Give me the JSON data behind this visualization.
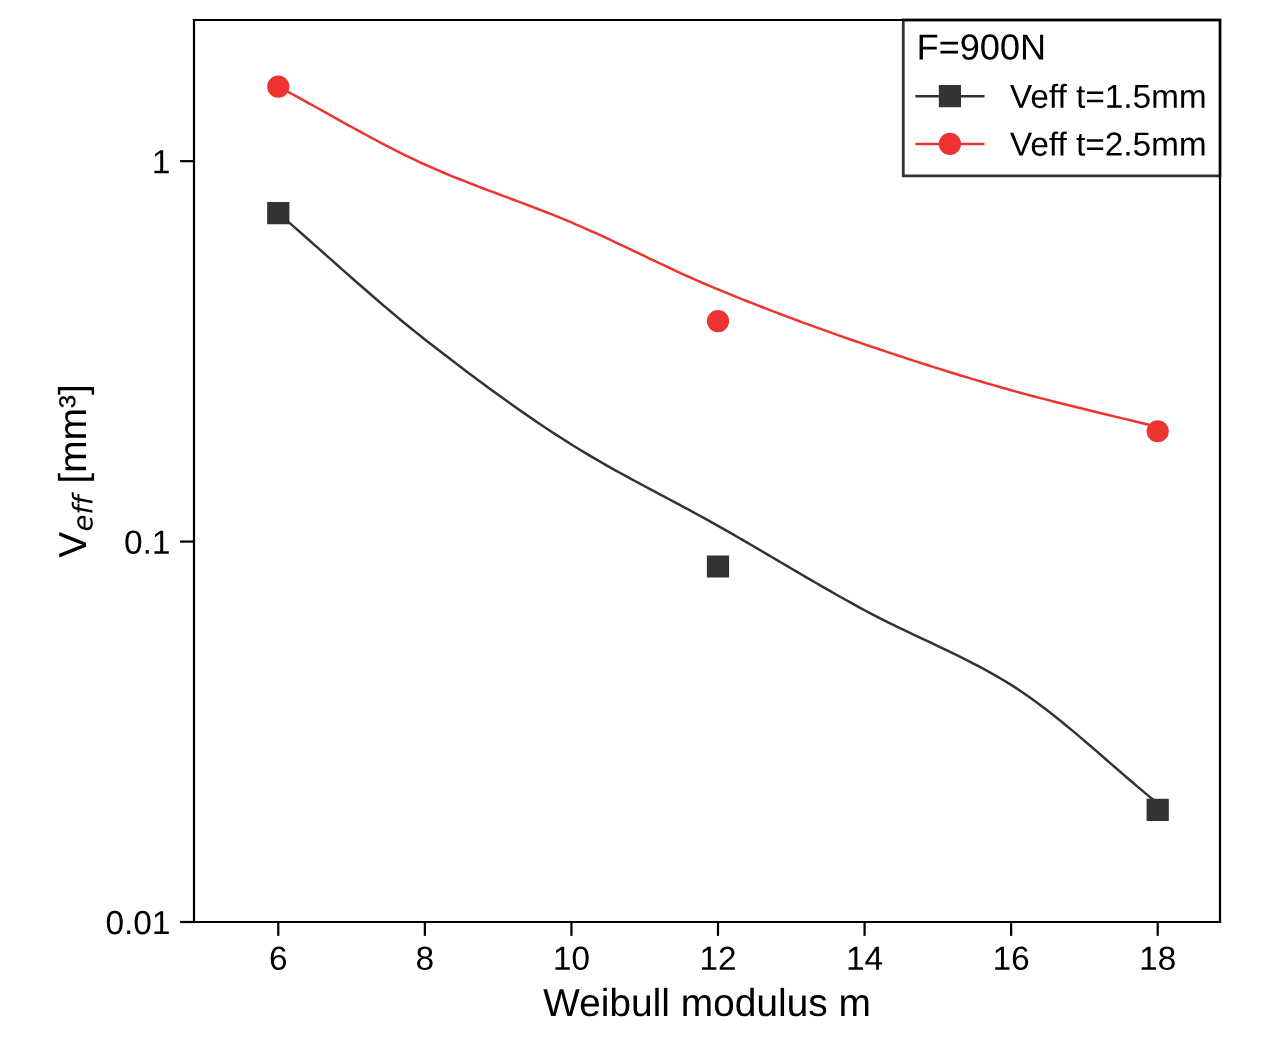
{
  "chart_data": {
    "type": "scatter",
    "xlabel": "Weibull modulus m",
    "ylabel": "V$_{eff}$ [mm³]",
    "legend_title": "F=900N",
    "x": [
      6,
      12,
      18
    ],
    "series": [
      {
        "type": "line",
        "color": "#333333",
        "x": [
          6,
          8,
          10,
          12,
          14,
          16,
          18
        ],
        "values": [
          0.73,
          0.34,
          0.18,
          0.11,
          0.066,
          0.042,
          0.0205
        ]
      },
      {
        "type": "line",
        "color": "#ee3333",
        "x": [
          6,
          8,
          10,
          12,
          14,
          16,
          18
        ],
        "values": [
          1.57,
          0.98,
          0.69,
          0.46,
          0.33,
          0.25,
          0.2
        ]
      },
      {
        "name": "Veff t=1.5mm",
        "color": "#333333",
        "values": [
          0.73,
          0.086,
          0.0197
        ],
        "marker": "square"
      },
      {
        "name": "Veff t=2.5mm",
        "color": "#ee3333",
        "values": [
          1.57,
          0.38,
          0.195
        ],
        "marker": "circle"
      }
    ],
    "log": "y",
    "xlim": [
      4.85,
      18.85
    ],
    "ylim": [
      0.01,
      2.35
    ],
    "xticks": [
      6,
      8,
      10,
      12,
      14,
      16,
      18
    ],
    "yticks": [
      0.01,
      0.1,
      1
    ],
    "grid": false,
    "legend": "top right",
    "line_style": "solid"
  }
}
